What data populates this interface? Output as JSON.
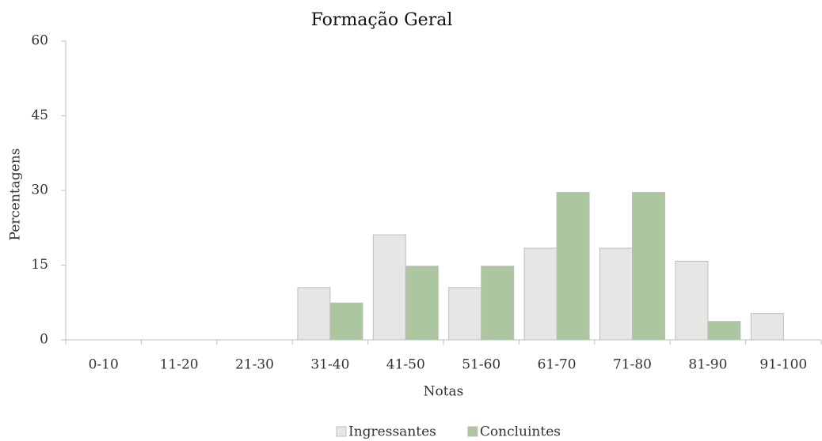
{
  "chart_data": {
    "type": "bar",
    "title": "Formação Geral",
    "x_label": "Notas",
    "y_label": "Percentagens",
    "categories": [
      "0-10",
      "11-20",
      "21-30",
      "31-40",
      "41-50",
      "51-60",
      "61-70",
      "71-80",
      "81-90",
      "91-100"
    ],
    "series": [
      {
        "name": "Ingressantes",
        "color": "#e6e7e4",
        "values": [
          0,
          0,
          0,
          10.5,
          21.1,
          10.5,
          18.4,
          18.4,
          15.8,
          5.3
        ]
      },
      {
        "name": "Concluintes",
        "color": "#acc6a0",
        "values": [
          0,
          0,
          0,
          7.4,
          14.8,
          14.8,
          29.6,
          29.6,
          3.7,
          0
        ]
      }
    ],
    "ylim": [
      0,
      60
    ],
    "yticks": [
      0,
      15,
      30,
      45,
      60
    ],
    "legend": "bottom"
  }
}
